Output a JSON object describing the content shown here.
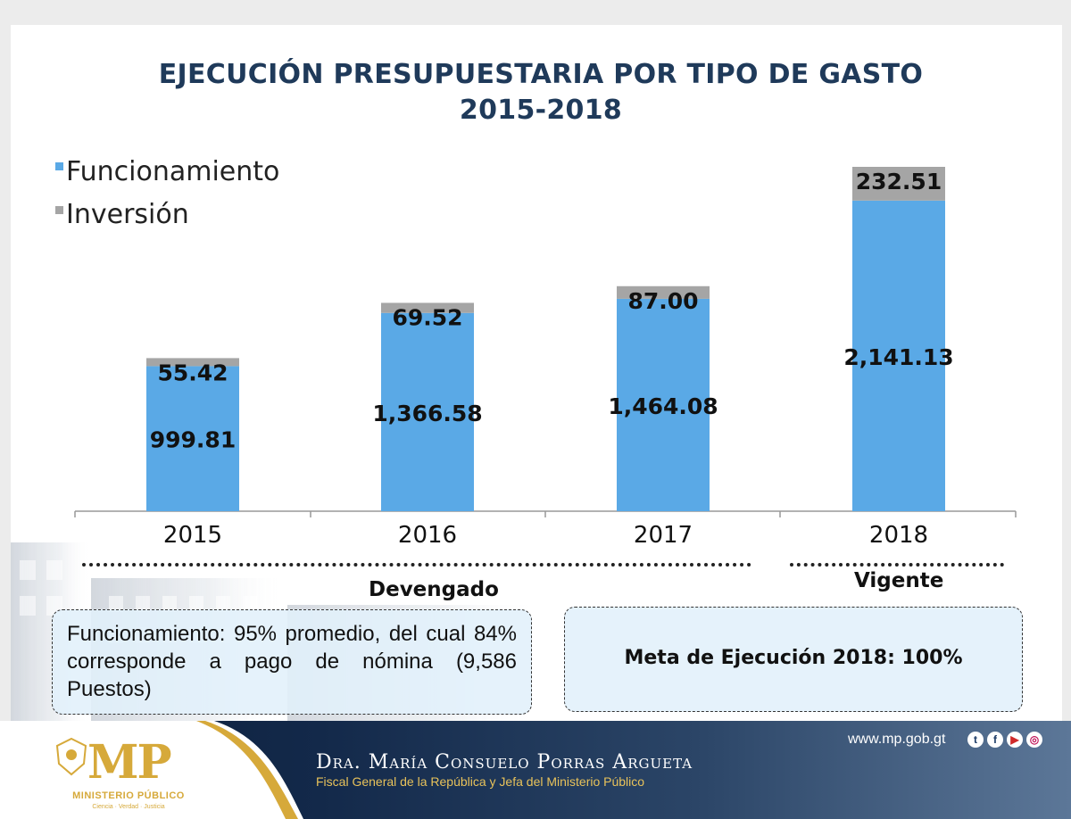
{
  "title": {
    "line1": "EJECUCIÓN PRESUPUESTARIA POR TIPO DE GASTO",
    "line2": "2015-2018"
  },
  "colors": {
    "funcionamiento": "#5aa9e6",
    "inversion": "#a5a5a5",
    "title": "#1f3a5a"
  },
  "chart_data": {
    "type": "bar",
    "stacked": true,
    "categories": [
      "2015",
      "2016",
      "2017",
      "2018"
    ],
    "series": [
      {
        "name": "Funcionamiento",
        "values": [
          999.81,
          1366.58,
          1464.08,
          2141.13
        ],
        "labels": [
          "999.81",
          "1,366.58",
          "1,464.08",
          "2,141.13"
        ]
      },
      {
        "name": "Inversión",
        "values": [
          55.42,
          69.52,
          87.0,
          232.51
        ],
        "labels": [
          "55.42",
          "69.52",
          "87.00",
          "232.51"
        ]
      }
    ],
    "legend": "top-left",
    "ylim": [
      0,
      2373.64
    ],
    "grid": false
  },
  "sections": {
    "devengado": "Devengado",
    "vigente": "Vigente"
  },
  "notes": {
    "devengado": "Funcionamiento: 95% promedio, del cual 84% corresponde a pago de nómina (9,586 Puestos)",
    "vigente": "Meta de Ejecución 2018: 100%"
  },
  "footer": {
    "name": "Dra. María Consuelo Porras Argueta",
    "role": "Fiscal General de la República y Jefa del Ministerio Público",
    "website": "www.mp.gob.gt",
    "logo_text": "MP",
    "logo_subtitle": "MINISTERIO PÚBLICO",
    "logo_motto": "Ciencia · Verdad · Justicia",
    "social_icons": [
      "twitter-icon",
      "facebook-icon",
      "youtube-icon",
      "instagram-icon"
    ]
  }
}
